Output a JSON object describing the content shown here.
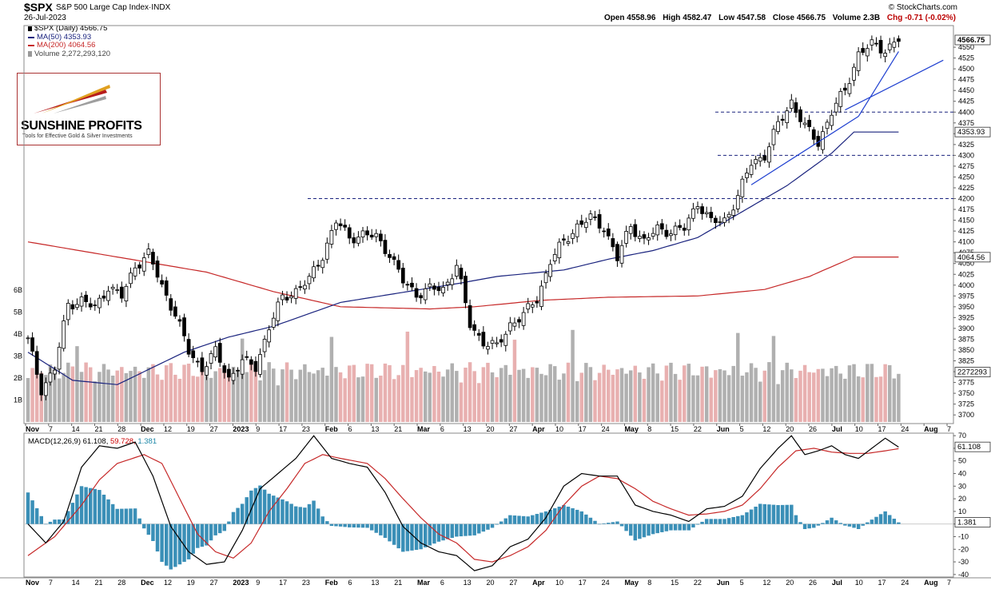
{
  "header": {
    "symbol": "$SPX",
    "description": "S&P 500 Large Cap Index",
    "exchange": "INDX",
    "date": "26-Jul-2023",
    "credit": "© StockCharts.com",
    "open": "Open 4558.96",
    "high": "High 4582.47",
    "low": "Low 4547.58",
    "close": "Close 4566.75",
    "volume": "Volume 2.3B",
    "chg": "Chg -0.71 (-0.02%)"
  },
  "legend": {
    "price": "$SPX (Daily) 4566.75",
    "ma50": "MA(50) 4353.93",
    "ma200": "MA(200) 4064.56",
    "volume": "Volume 2,272,293,120"
  },
  "logo": {
    "name": "SUNSHINE PROFITS",
    "tagline": "Tools for Effective Gold & Silver Investments"
  },
  "macd_legend": {
    "label": "MACD(12,26,9)",
    "macd": "61.108,",
    "signal": "59.728,",
    "hist": "1.381"
  },
  "colors": {
    "up": "#000000",
    "down": "#000000",
    "ma50": "#1a237e",
    "ma200": "#c62828",
    "trend": "#1e3fd0",
    "vol_up": "#b0b0b0",
    "vol_down": "#e8b0b0",
    "macd_hist": "#3a8fb7"
  },
  "chart_data": [
    {
      "type": "candlestick",
      "title": "$SPX (Daily)",
      "y_ticks": [
        3700,
        3725,
        3750,
        3775,
        3800,
        3825,
        3850,
        3875,
        3900,
        3925,
        3950,
        3975,
        4000,
        4025,
        4050,
        4075,
        4100,
        4125,
        4150,
        4175,
        4200,
        4225,
        4250,
        4275,
        4300,
        4325,
        4350,
        4375,
        4400,
        4425,
        4450,
        4475,
        4500,
        4525,
        4550
      ],
      "ylim": [
        3680,
        4600
      ],
      "x_labels": [
        "Nov",
        "7",
        "14",
        "21",
        "28",
        "Dec",
        "12",
        "19",
        "27",
        "2023",
        "9",
        "17",
        "23",
        "Feb",
        "6",
        "13",
        "21",
        "Mar",
        "6",
        "13",
        "20",
        "27",
        "Apr",
        "10",
        "17",
        "24",
        "May",
        "8",
        "15",
        "22",
        "Jun",
        "5",
        "12",
        "20",
        "26",
        "Jul",
        "10",
        "17",
        "24",
        "Aug",
        "7"
      ],
      "last_label": "4566.75",
      "ma50_label": "4353.93",
      "ma200_label": "4064.56",
      "volume_label": "2272293",
      "volume_ticks": [
        "1B",
        "2B",
        "3B",
        "4B",
        "5B",
        "6B"
      ],
      "horizontal_levels": [
        4200,
        4300,
        4400
      ],
      "trading_days": 186,
      "ma50_anchors": [
        [
          0,
          3845
        ],
        [
          10,
          3780
        ],
        [
          20,
          3770
        ],
        [
          35,
          3845
        ],
        [
          45,
          3880
        ],
        [
          55,
          3905
        ],
        [
          70,
          3960
        ],
        [
          85,
          3985
        ],
        [
          97,
          4005
        ],
        [
          105,
          4020
        ],
        [
          120,
          4035
        ],
        [
          130,
          4060
        ],
        [
          140,
          4080
        ],
        [
          150,
          4110
        ],
        [
          160,
          4170
        ],
        [
          170,
          4230
        ],
        [
          180,
          4305
        ],
        [
          185,
          4354
        ]
      ],
      "ma200_anchors": [
        [
          0,
          4100
        ],
        [
          20,
          4065
        ],
        [
          40,
          4030
        ],
        [
          55,
          3985
        ],
        [
          70,
          3950
        ],
        [
          90,
          3945
        ],
        [
          100,
          3950
        ],
        [
          115,
          3965
        ],
        [
          130,
          3972
        ],
        [
          150,
          3975
        ],
        [
          165,
          3990
        ],
        [
          175,
          4020
        ],
        [
          185,
          4065
        ]
      ],
      "close_anchors": [
        [
          0,
          3872
        ],
        [
          3,
          3760
        ],
        [
          6,
          3806
        ],
        [
          9,
          3956
        ],
        [
          12,
          3965
        ],
        [
          15,
          3946
        ],
        [
          18,
          3998
        ],
        [
          21,
          3972
        ],
        [
          24,
          4045
        ],
        [
          27,
          4071
        ],
        [
          30,
          3998
        ],
        [
          33,
          3933
        ],
        [
          36,
          3846
        ],
        [
          39,
          3808
        ],
        [
          42,
          3845
        ],
        [
          45,
          3785
        ],
        [
          48,
          3824
        ],
        [
          51,
          3811
        ],
        [
          54,
          3903
        ],
        [
          57,
          3970
        ],
        [
          60,
          3988
        ],
        [
          63,
          4012
        ],
        [
          66,
          4070
        ],
        [
          69,
          4147
        ],
        [
          72,
          4110
        ],
        [
          75,
          4117
        ],
        [
          78,
          4111
        ],
        [
          81,
          4073
        ],
        [
          84,
          4008
        ],
        [
          87,
          3980
        ],
        [
          90,
          3991
        ],
        [
          93,
          3990
        ],
        [
          96,
          4047
        ],
        [
          99,
          3908
        ],
        [
          102,
          3869
        ],
        [
          105,
          3856
        ],
        [
          108,
          3910
        ],
        [
          111,
          3930
        ],
        [
          114,
          3969
        ],
        [
          117,
          4055
        ],
        [
          120,
          4100
        ],
        [
          123,
          4137
        ],
        [
          126,
          4154
        ],
        [
          129,
          4135
        ],
        [
          132,
          4060
        ],
        [
          135,
          4140
        ],
        [
          138,
          4100
        ],
        [
          141,
          4130
        ],
        [
          144,
          4125
        ],
        [
          147,
          4130
        ],
        [
          150,
          4192
        ],
        [
          153,
          4145
        ],
        [
          156,
          4150
        ],
        [
          159,
          4205
        ],
        [
          162,
          4283
        ],
        [
          165,
          4300
        ],
        [
          168,
          4370
        ],
        [
          171,
          4425
        ],
        [
          174,
          4365
        ],
        [
          177,
          4330
        ],
        [
          180,
          4400
        ],
        [
          183,
          4450
        ],
        [
          186,
          4535
        ],
        [
          189,
          4555
        ],
        [
          192,
          4545
        ],
        [
          195,
          4567
        ]
      ],
      "trendlines": [
        {
          "from": [
            162,
            4232
          ],
          "to": [
            186,
            4390
          ]
        },
        {
          "from": [
            186,
            4390
          ],
          "to": [
            195,
            4540
          ]
        },
        {
          "from": [
            183,
            4405
          ],
          "to": [
            205,
            4520
          ]
        }
      ]
    },
    {
      "type": "bar",
      "title": "MACD(12,26,9)",
      "y_ticks": [
        -40,
        -30,
        -20,
        -10,
        0,
        10,
        20,
        30,
        40,
        50,
        60,
        70
      ],
      "ylim": [
        -42,
        72
      ],
      "last_label": "61.108",
      "hist_label": "1.381",
      "macd_anchors": [
        [
          0,
          0
        ],
        [
          4,
          -15
        ],
        [
          8,
          2
        ],
        [
          12,
          45
        ],
        [
          16,
          62
        ],
        [
          20,
          60
        ],
        [
          24,
          65
        ],
        [
          28,
          38
        ],
        [
          32,
          -2
        ],
        [
          36,
          -22
        ],
        [
          40,
          -32
        ],
        [
          44,
          -30
        ],
        [
          48,
          -5
        ],
        [
          52,
          28
        ],
        [
          56,
          40
        ],
        [
          60,
          52
        ],
        [
          64,
          70
        ],
        [
          68,
          52
        ],
        [
          72,
          48
        ],
        [
          76,
          45
        ],
        [
          80,
          25
        ],
        [
          84,
          -2
        ],
        [
          88,
          -15
        ],
        [
          92,
          -22
        ],
        [
          96,
          -25
        ],
        [
          100,
          -37
        ],
        [
          104,
          -33
        ],
        [
          108,
          -18
        ],
        [
          112,
          -12
        ],
        [
          116,
          5
        ],
        [
          120,
          30
        ],
        [
          124,
          40
        ],
        [
          128,
          38
        ],
        [
          132,
          38
        ],
        [
          136,
          15
        ],
        [
          140,
          10
        ],
        [
          144,
          7
        ],
        [
          148,
          2
        ],
        [
          152,
          12
        ],
        [
          156,
          14
        ],
        [
          160,
          22
        ],
        [
          164,
          44
        ],
        [
          168,
          60
        ],
        [
          171,
          70
        ],
        [
          174,
          55
        ],
        [
          177,
          58
        ],
        [
          180,
          62
        ],
        [
          183,
          55
        ],
        [
          186,
          52
        ],
        [
          189,
          60
        ],
        [
          192,
          68
        ],
        [
          195,
          61
        ]
      ],
      "signal_anchors": [
        [
          0,
          -25
        ],
        [
          6,
          -10
        ],
        [
          12,
          15
        ],
        [
          16,
          35
        ],
        [
          20,
          48
        ],
        [
          26,
          55
        ],
        [
          30,
          48
        ],
        [
          34,
          20
        ],
        [
          38,
          -8
        ],
        [
          42,
          -22
        ],
        [
          46,
          -27
        ],
        [
          50,
          -15
        ],
        [
          54,
          10
        ],
        [
          58,
          28
        ],
        [
          62,
          48
        ],
        [
          66,
          55
        ],
        [
          70,
          52
        ],
        [
          76,
          48
        ],
        [
          80,
          36
        ],
        [
          84,
          20
        ],
        [
          88,
          5
        ],
        [
          92,
          -8
        ],
        [
          96,
          -15
        ],
        [
          100,
          -28
        ],
        [
          104,
          -30
        ],
        [
          108,
          -25
        ],
        [
          112,
          -18
        ],
        [
          116,
          -5
        ],
        [
          120,
          15
        ],
        [
          124,
          30
        ],
        [
          128,
          38
        ],
        [
          132,
          36
        ],
        [
          136,
          28
        ],
        [
          140,
          18
        ],
        [
          144,
          12
        ],
        [
          148,
          7
        ],
        [
          152,
          8
        ],
        [
          156,
          10
        ],
        [
          160,
          15
        ],
        [
          164,
          28
        ],
        [
          168,
          45
        ],
        [
          172,
          58
        ],
        [
          176,
          60
        ],
        [
          180,
          57
        ],
        [
          184,
          56
        ],
        [
          188,
          56
        ],
        [
          192,
          58
        ],
        [
          195,
          59.7
        ]
      ]
    }
  ]
}
